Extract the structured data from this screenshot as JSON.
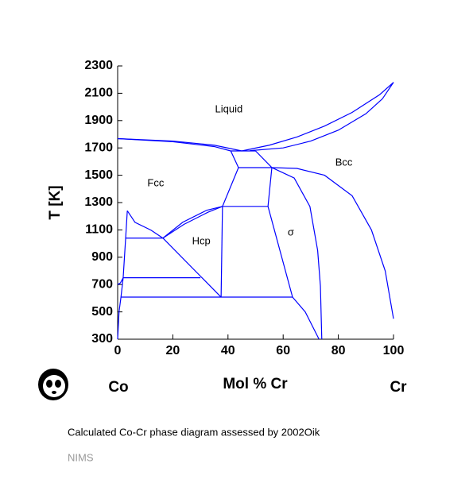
{
  "chart_data": {
    "type": "line",
    "xlabel": "Mol % Cr",
    "ylabel": "T [K]",
    "xlim": [
      0,
      100
    ],
    "ylim": [
      300,
      2300
    ],
    "xticks": [
      0,
      20,
      40,
      60,
      80,
      100
    ],
    "yticks": [
      300,
      500,
      700,
      900,
      1100,
      1300,
      1500,
      1700,
      1900,
      2100,
      2300
    ],
    "series": [
      {
        "color": "#0000ff",
        "x": [
          0,
          20,
          35,
          45
        ],
        "values": [
          1768,
          1750,
          1720,
          1678
        ]
      },
      {
        "color": "#0000ff",
        "x": [
          0,
          20,
          35,
          41
        ],
        "values": [
          1768,
          1745,
          1710,
          1678
        ]
      },
      {
        "color": "#0000ff",
        "x": [
          45,
          55,
          65,
          75,
          85,
          95,
          100
        ],
        "values": [
          1678,
          1720,
          1780,
          1860,
          1960,
          2090,
          2180
        ]
      },
      {
        "color": "#0000ff",
        "x": [
          48,
          60,
          70,
          80,
          90,
          96,
          100
        ],
        "values": [
          1680,
          1700,
          1750,
          1830,
          1950,
          2060,
          2180
        ]
      },
      {
        "color": "#0000ff",
        "x": [
          41,
          50
        ],
        "values": [
          1678,
          1678
        ]
      },
      {
        "color": "#0000ff",
        "x": [
          41,
          43.8
        ],
        "values": [
          1678,
          1556
        ]
      },
      {
        "color": "#0000ff",
        "x": [
          50,
          55.9
        ],
        "values": [
          1678,
          1556
        ]
      },
      {
        "color": "#0000ff",
        "x": [
          43.8,
          55.9
        ],
        "values": [
          1556,
          1556
        ]
      },
      {
        "color": "#0000ff",
        "x": [
          55.9,
          65,
          75,
          85,
          92,
          97,
          100
        ],
        "values": [
          1556,
          1550,
          1500,
          1350,
          1100,
          800,
          450
        ]
      },
      {
        "color": "#0000ff",
        "x": [
          55.9,
          64,
          69.7,
          72.5,
          73.5,
          74
        ],
        "values": [
          1556,
          1480,
          1271,
          950,
          690,
          300
        ]
      },
      {
        "color": "#0000ff",
        "x": [
          55.9,
          54.5,
          63.4
        ],
        "values": [
          1556,
          1272,
          608
        ]
      },
      {
        "color": "#0000ff",
        "x": [
          63.4,
          68,
          73
        ],
        "values": [
          608,
          500,
          300
        ]
      },
      {
        "color": "#0000ff",
        "x": [
          43.8,
          38
        ],
        "values": [
          1556,
          1272
        ]
      },
      {
        "color": "#0000ff",
        "x": [
          38,
          54.5
        ],
        "values": [
          1272,
          1272
        ]
      },
      {
        "color": "#0000ff",
        "x": [
          38,
          37.5
        ],
        "values": [
          1272,
          608
        ]
      },
      {
        "color": "#0000ff",
        "x": [
          1.2,
          63.4
        ],
        "values": [
          608,
          608
        ]
      },
      {
        "color": "#0000ff",
        "x": [
          2,
          30
        ],
        "values": [
          750,
          750
        ]
      },
      {
        "color": "#0000ff",
        "x": [
          16.4,
          37.5
        ],
        "values": [
          1040,
          608
        ]
      },
      {
        "color": "#0000ff",
        "x": [
          2.9,
          16.4
        ],
        "values": [
          1040,
          1040
        ]
      },
      {
        "color": "#0000ff",
        "x": [
          16.4,
          23.6,
          32.3,
          38
        ],
        "values": [
          1040,
          1156,
          1244,
          1272
        ]
      },
      {
        "color": "#0000ff",
        "x": [
          16.4,
          24,
          32.8,
          38
        ],
        "values": [
          1040,
          1140,
          1230,
          1272
        ]
      },
      {
        "color": "#0000ff",
        "x": [
          3.5,
          6.3,
          12.1,
          16.4
        ],
        "values": [
          1240,
          1155,
          1098,
          1040
        ]
      },
      {
        "color": "#0000ff",
        "x": [
          3.5,
          2.9,
          2,
          1.2,
          0.5,
          0
        ],
        "values": [
          1240,
          1040,
          750,
          608,
          500,
          300
        ]
      },
      {
        "color": "#0000ff",
        "x": [
          0,
          1,
          2
        ],
        "values": [
          700,
          712,
          750
        ]
      }
    ],
    "annotations": [
      {
        "text": "Liquid",
        "x": 40.3,
        "y": 1980
      },
      {
        "text": "Fcc",
        "x": 13.8,
        "y": 1440
      },
      {
        "text": "Hcp",
        "x": 30.3,
        "y": 1015
      },
      {
        "text": "σ",
        "x": 62.8,
        "y": 1080
      },
      {
        "text": "Bcc",
        "x": 82,
        "y": 1590
      }
    ],
    "left_element": "Co",
    "right_element": "Cr",
    "caption": "Calculated Co-Cr phase diagram assessed by 2002Oik",
    "source": "NIMS"
  }
}
